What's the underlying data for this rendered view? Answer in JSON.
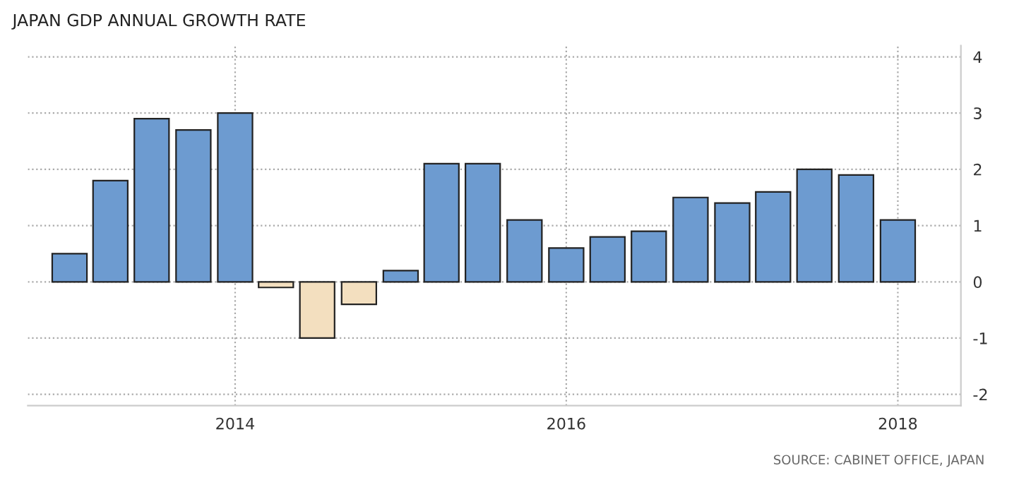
{
  "chart_data": {
    "type": "bar",
    "title": "JAPAN GDP ANNUAL GROWTH RATE",
    "x": [
      "2013-01-01",
      "2013-04-01",
      "2013-07-01",
      "2013-10-01",
      "2014-01-01",
      "2014-04-01",
      "2014-07-01",
      "2014-10-01",
      "2015-01-01",
      "2015-04-01",
      "2015-07-01",
      "2015-10-01",
      "2016-01-01",
      "2016-04-01",
      "2016-07-01",
      "2016-10-01",
      "2017-01-01",
      "2017-04-01",
      "2017-07-01",
      "2017-10-01",
      "2018-01-01"
    ],
    "values": [
      0.5,
      1.8,
      2.9,
      2.7,
      3.0,
      -0.1,
      -1.0,
      -0.4,
      0.2,
      2.1,
      2.1,
      1.1,
      0.6,
      0.8,
      0.9,
      1.5,
      1.4,
      1.6,
      2.0,
      1.9,
      1.1
    ],
    "colors": [
      "#6d9bd0",
      "#6d9bd0",
      "#6d9bd0",
      "#6d9bd0",
      "#6d9bd0",
      "#f3dfbf",
      "#f3dfbf",
      "#f3dfbf",
      "#6d9bd0",
      "#6d9bd0",
      "#6d9bd0",
      "#6d9bd0",
      "#6d9bd0",
      "#6d9bd0",
      "#6d9bd0",
      "#6d9bd0",
      "#6d9bd0",
      "#6d9bd0",
      "#6d9bd0",
      "#6d9bd0",
      "#6d9bd0"
    ],
    "xlim": [
      "2012-10-01",
      "2018-05-20"
    ],
    "xticks": [
      {
        "value": "2014-01-01",
        "label": "2014"
      },
      {
        "value": "2016-01-01",
        "label": "2016"
      },
      {
        "value": "2018-01-01",
        "label": "2018"
      }
    ],
    "ylim": [
      -2.2,
      4.2
    ],
    "yticks": [
      -2,
      -1,
      0,
      1,
      2,
      3,
      4
    ],
    "grid": true,
    "annotations": [
      "SOURCE: CABINET OFFICE, JAPAN"
    ]
  }
}
